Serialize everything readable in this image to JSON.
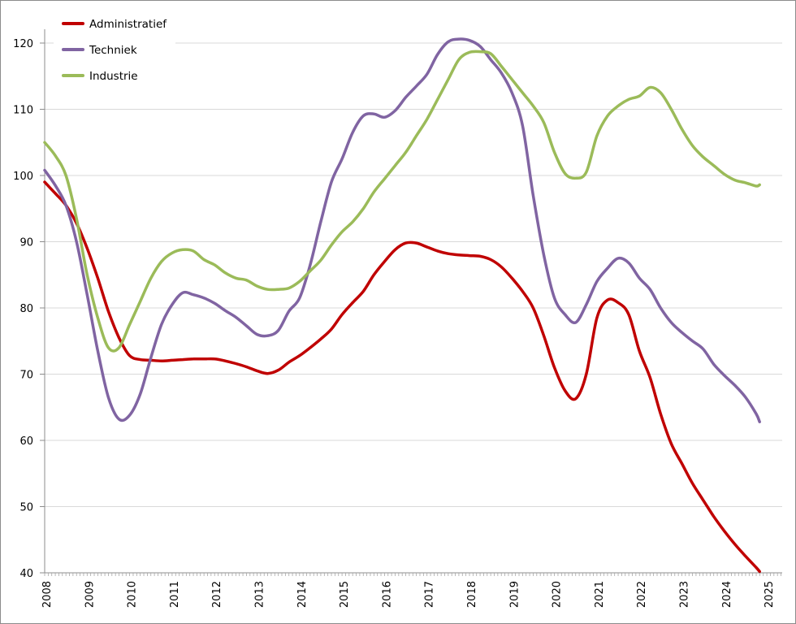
{
  "chart_data": {
    "type": "line",
    "title": "",
    "xlabel": "",
    "ylabel": "",
    "ylim": [
      40,
      120
    ],
    "yticks": [
      40,
      50,
      60,
      70,
      80,
      90,
      100,
      110,
      120
    ],
    "xlim": [
      2008.0,
      2025.4
    ],
    "xticks": [
      2008,
      2009,
      2010,
      2011,
      2012,
      2013,
      2014,
      2015,
      2016,
      2017,
      2018,
      2019,
      2020,
      2021,
      2022,
      2023,
      2024,
      2025
    ],
    "xtick_labels": [
      "2008",
      "2009",
      "2010",
      "2011",
      "2012",
      "2013",
      "2014",
      "2015",
      "2016",
      "2017",
      "2018",
      "2019",
      "2020",
      "2021",
      "2022",
      "2023",
      "2024",
      "2025"
    ],
    "grid": "horizontal",
    "minor_ticks": "monthly",
    "legend_position": "top-left",
    "x": [
      2008.0,
      2008.25,
      2008.5,
      2008.75,
      2009.0,
      2009.25,
      2009.5,
      2009.75,
      2010.0,
      2010.25,
      2010.5,
      2010.75,
      2011.0,
      2011.25,
      2011.5,
      2011.75,
      2012.0,
      2012.25,
      2012.5,
      2012.75,
      2013.0,
      2013.25,
      2013.5,
      2013.75,
      2014.0,
      2014.25,
      2014.5,
      2014.75,
      2015.0,
      2015.25,
      2015.5,
      2015.75,
      2016.0,
      2016.25,
      2016.5,
      2016.75,
      2017.0,
      2017.25,
      2017.5,
      2017.75,
      2018.0,
      2018.25,
      2018.5,
      2018.75,
      2019.0,
      2019.25,
      2019.5,
      2019.75,
      2020.0,
      2020.25,
      2020.5,
      2020.75,
      2021.0,
      2021.25,
      2021.5,
      2021.75,
      2022.0,
      2022.25,
      2022.5,
      2022.75,
      2023.0,
      2023.25,
      2023.5,
      2023.75,
      2024.0,
      2024.25,
      2024.5,
      2024.75,
      2024.83
    ],
    "series": [
      {
        "name": "Administratief",
        "color": "#c00000",
        "values": [
          99.0,
          97.3,
          95.5,
          92.8,
          89.0,
          84.5,
          79.5,
          75.5,
          72.8,
          72.2,
          72.1,
          72.0,
          72.1,
          72.2,
          72.3,
          72.3,
          72.3,
          72.0,
          71.6,
          71.1,
          70.5,
          70.1,
          70.6,
          71.8,
          72.8,
          74.0,
          75.3,
          76.8,
          79.0,
          80.8,
          82.5,
          85.0,
          87.0,
          88.8,
          89.8,
          89.8,
          89.2,
          88.6,
          88.2,
          88.0,
          87.9,
          87.8,
          87.3,
          86.2,
          84.5,
          82.5,
          80.0,
          75.8,
          71.0,
          67.5,
          66.3,
          70.0,
          78.5,
          81.2,
          80.8,
          79.0,
          73.5,
          69.5,
          64.0,
          59.5,
          56.5,
          53.5,
          51.0,
          48.5,
          46.3,
          44.3,
          42.5,
          40.8,
          40.2
        ]
      },
      {
        "name": "Techniek",
        "color": "#8064a2",
        "values": [
          100.8,
          98.5,
          95.5,
          90.0,
          82.0,
          73.5,
          66.5,
          63.2,
          63.8,
          67.0,
          72.5,
          77.5,
          80.5,
          82.3,
          82.0,
          81.5,
          80.7,
          79.6,
          78.6,
          77.3,
          76.0,
          75.8,
          76.6,
          79.5,
          81.5,
          86.5,
          93.0,
          99.0,
          102.5,
          106.5,
          109.0,
          109.3,
          108.8,
          109.8,
          111.8,
          113.5,
          115.3,
          118.3,
          120.2,
          120.6,
          120.4,
          119.5,
          117.5,
          115.5,
          112.5,
          107.5,
          97.0,
          88.0,
          81.5,
          79.0,
          77.8,
          80.5,
          84.0,
          86.0,
          87.5,
          86.8,
          84.5,
          82.8,
          80.0,
          77.8,
          76.3,
          75.0,
          73.8,
          71.5,
          69.8,
          68.3,
          66.5,
          64.0,
          62.8
        ]
      },
      {
        "name": "Industrie",
        "color": "#9bbb59",
        "values": [
          105.0,
          103.0,
          100.0,
          93.5,
          85.0,
          78.5,
          74.0,
          74.0,
          77.5,
          81.0,
          84.5,
          87.0,
          88.3,
          88.8,
          88.6,
          87.3,
          86.5,
          85.3,
          84.5,
          84.2,
          83.3,
          82.8,
          82.8,
          83.0,
          84.0,
          85.6,
          87.2,
          89.5,
          91.5,
          93.0,
          95.0,
          97.5,
          99.5,
          101.5,
          103.5,
          106.0,
          108.5,
          111.5,
          114.5,
          117.5,
          118.6,
          118.7,
          118.4,
          116.5,
          114.5,
          112.5,
          110.5,
          108.0,
          103.5,
          100.3,
          99.6,
          100.5,
          106.0,
          109.0,
          110.5,
          111.5,
          112.0,
          113.3,
          112.5,
          110.0,
          107.0,
          104.5,
          102.8,
          101.5,
          100.2,
          99.3,
          98.9,
          98.4,
          98.6
        ]
      }
    ]
  }
}
